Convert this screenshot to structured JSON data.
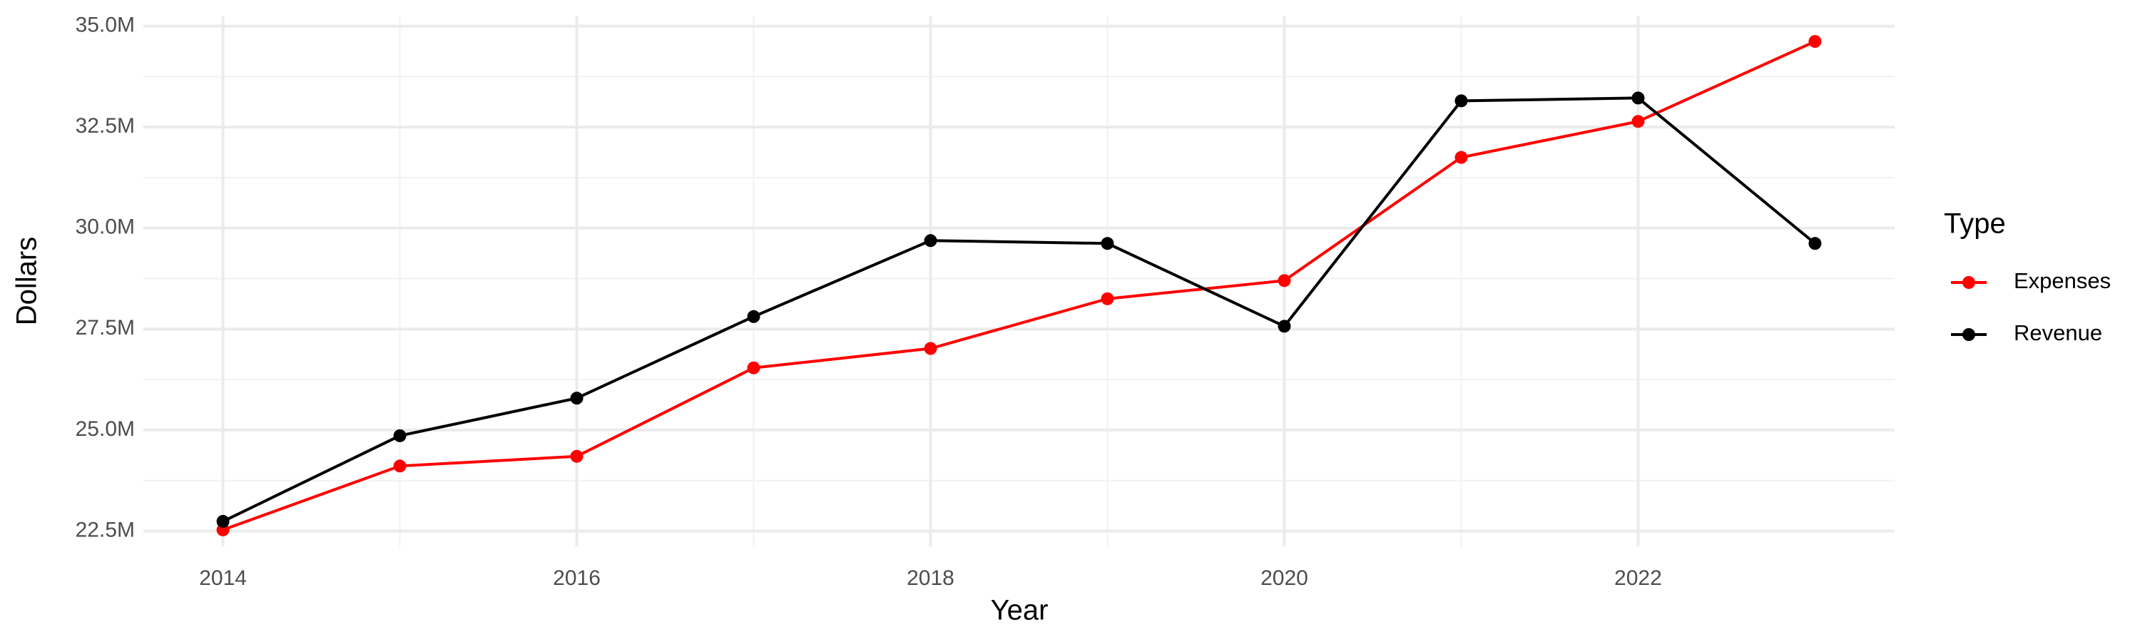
{
  "chart_data": {
    "type": "line",
    "x_label": "Year",
    "y_label": "Dollars",
    "legend_title": "Type",
    "x": [
      2014,
      2015,
      2016,
      2017,
      2018,
      2019,
      2020,
      2021,
      2022,
      2023
    ],
    "series": [
      {
        "name": "Expenses",
        "color": "#ff0000",
        "values": [
          22530000,
          24110000,
          24350000,
          26540000,
          27020000,
          28250000,
          28700000,
          31750000,
          32640000,
          34620000
        ]
      },
      {
        "name": "Revenue",
        "color": "#000000",
        "values": [
          22740000,
          24860000,
          25790000,
          27810000,
          29690000,
          29620000,
          27570000,
          33150000,
          33220000,
          29620000
        ]
      }
    ],
    "xlim": [
      2013.55,
      2023.45
    ],
    "xticks": [
      2014,
      2016,
      2018,
      2020,
      2022
    ],
    "ylim": [
      22120000,
      35240000
    ],
    "yticks": [
      {
        "value": 22500000,
        "label": "22.5M"
      },
      {
        "value": 25000000,
        "label": "25.0M"
      },
      {
        "value": 27500000,
        "label": "27.5M"
      },
      {
        "value": 30000000,
        "label": "30.0M"
      },
      {
        "value": 32500000,
        "label": "32.5M"
      },
      {
        "value": 35000000,
        "label": "35.0M"
      }
    ],
    "grid": true,
    "legend_position": "right"
  }
}
